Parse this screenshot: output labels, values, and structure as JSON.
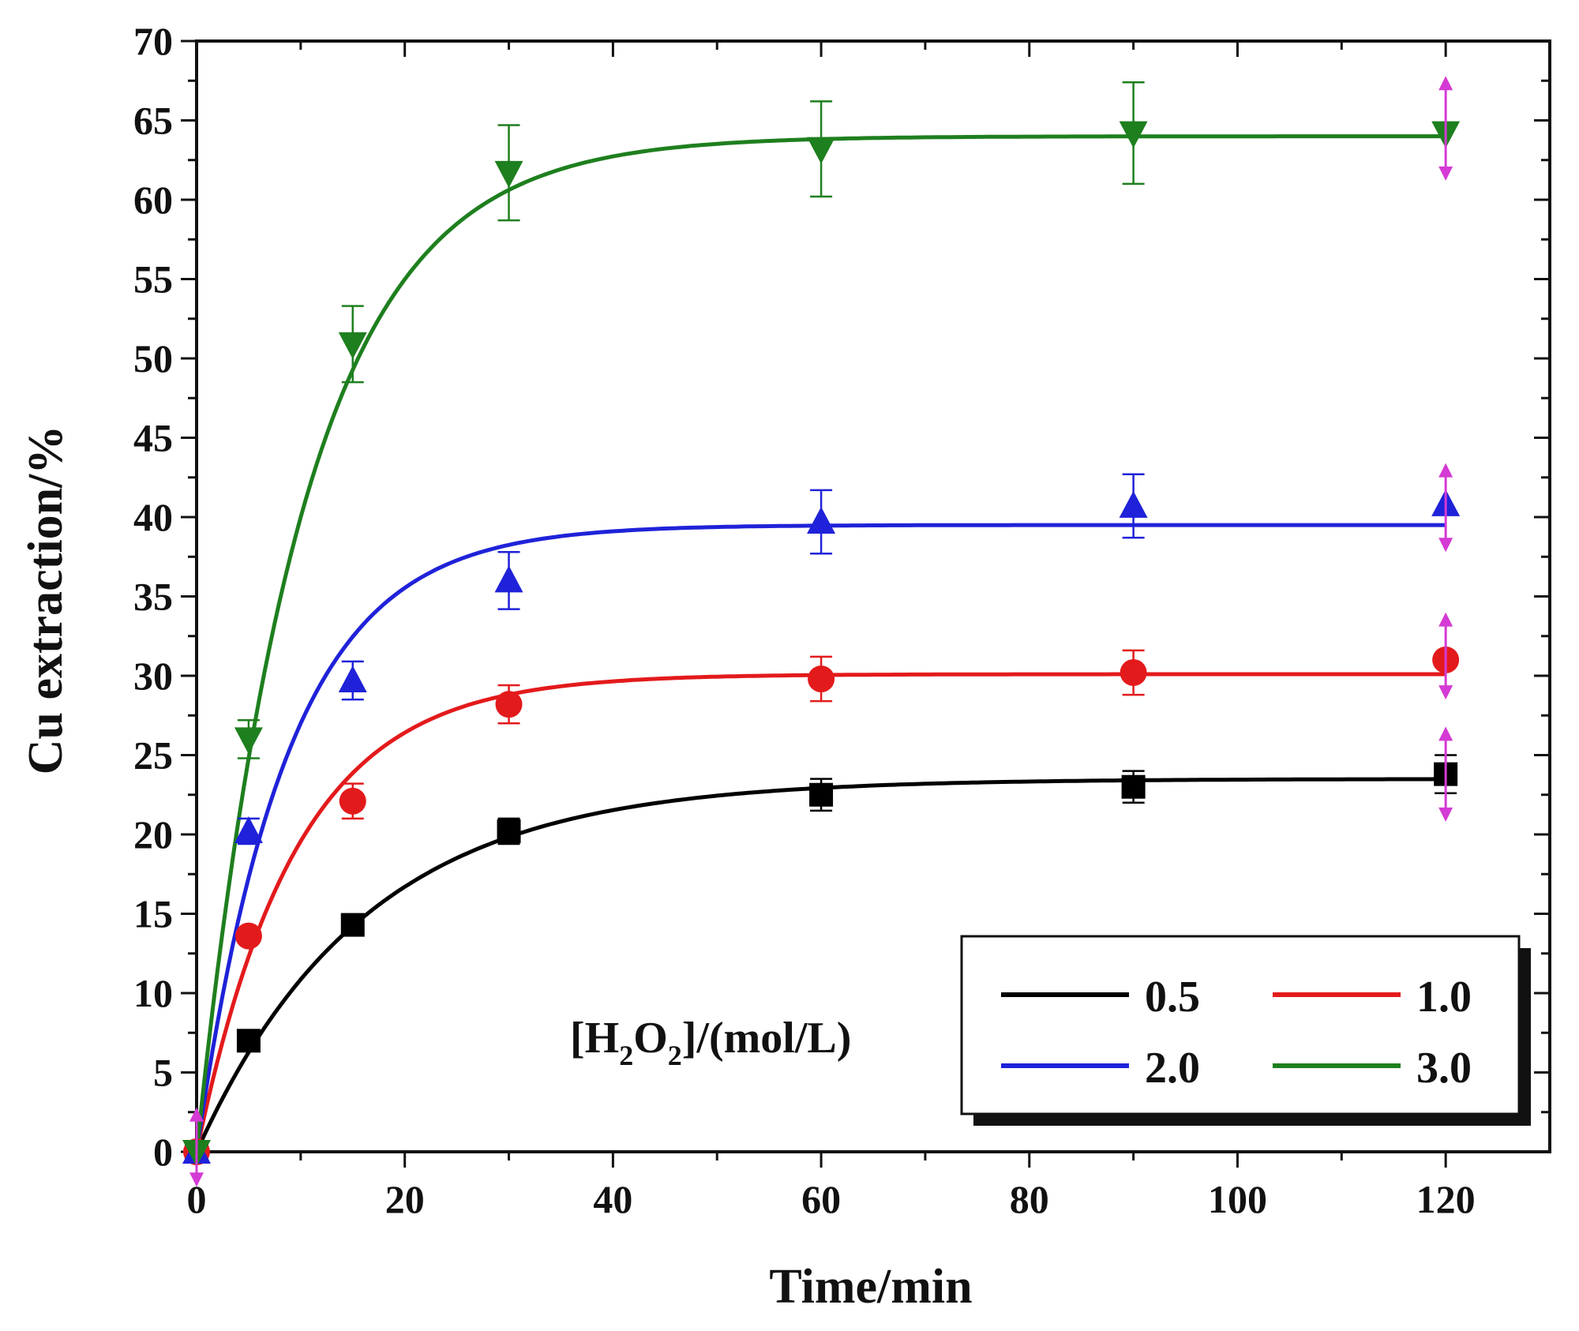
{
  "chart_data": {
    "type": "scatter",
    "xlabel": "Time/min",
    "ylabel": "Cu extraction/%",
    "xlim": [
      0,
      130
    ],
    "ylim": [
      0,
      70
    ],
    "xticks": [
      0,
      20,
      40,
      60,
      80,
      100,
      120
    ],
    "yticks": [
      0,
      5,
      10,
      15,
      20,
      25,
      30,
      35,
      40,
      45,
      50,
      55,
      60,
      65,
      70
    ],
    "grid": false,
    "legend": {
      "placement": "bottom-right",
      "title_parts": [
        "[H",
        "2",
        "O",
        "2",
        "]/(mol/L)"
      ]
    },
    "series": [
      {
        "name": "0.5",
        "marker": "square",
        "color": "#000000",
        "x": [
          0,
          5,
          15,
          30,
          60,
          90,
          120
        ],
        "y": [
          0,
          7.0,
          14.3,
          20.2,
          22.5,
          23.0,
          23.8
        ],
        "err": [
          0,
          0,
          0,
          0.8,
          1.0,
          1.0,
          1.2
        ],
        "fit": {
          "a": 23.5,
          "k": 0.062
        }
      },
      {
        "name": "1.0",
        "marker": "circle",
        "color": "#e31a1c",
        "x": [
          0,
          5,
          15,
          30,
          60,
          90,
          120
        ],
        "y": [
          0,
          13.6,
          22.1,
          28.2,
          29.8,
          30.2,
          31.0
        ],
        "err": [
          0,
          0,
          1.1,
          1.2,
          1.4,
          1.4,
          0
        ],
        "fit": {
          "a": 30.1,
          "k": 0.105
        }
      },
      {
        "name": "2.0",
        "marker": "triangle-up",
        "color": "#1f22d8",
        "x": [
          0,
          5,
          15,
          30,
          60,
          90,
          120
        ],
        "y": [
          0,
          20.2,
          29.7,
          36.0,
          39.7,
          40.7,
          40.8
        ],
        "err": [
          0,
          0.8,
          1.2,
          1.8,
          2.0,
          2.0,
          0
        ],
        "fit": {
          "a": 39.5,
          "k": 0.115
        }
      },
      {
        "name": "3.0",
        "marker": "triangle-down",
        "color": "#1e7f1e",
        "x": [
          0,
          5,
          15,
          30,
          60,
          90,
          120
        ],
        "y": [
          0,
          26.0,
          50.9,
          61.7,
          63.2,
          64.2,
          64.2
        ],
        "err": [
          0,
          1.2,
          2.4,
          3.0,
          3.0,
          3.2,
          0
        ],
        "fit": {
          "a": 64.0,
          "k": 0.098
        }
      }
    ],
    "annotation_arrows": {
      "color": "#d43ad4",
      "x": 120,
      "ranges": [
        [
          61.2,
          67.8
        ],
        [
          37.8,
          43.4
        ],
        [
          28.5,
          34.0
        ],
        [
          20.8,
          26.8
        ]
      ]
    }
  }
}
